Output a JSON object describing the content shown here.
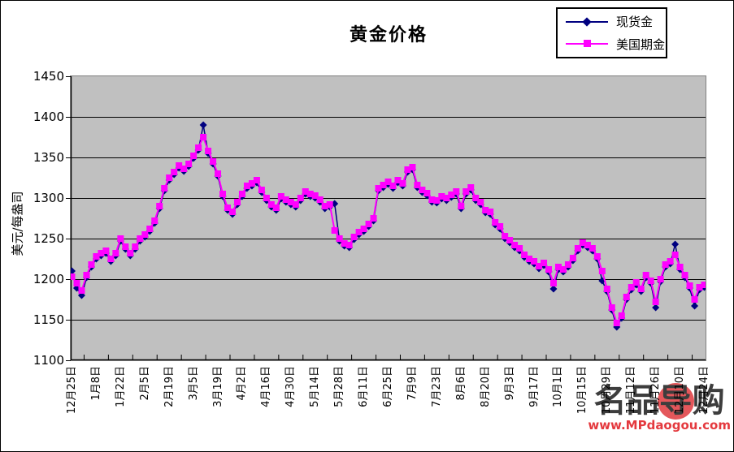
{
  "watermark": {
    "logo_chars": [
      "名",
      "品",
      "导",
      "购"
    ],
    "circled_char_index": 2,
    "url": "www.MPdaogou.com",
    "logo_color": "#3d3d3d",
    "accent_color": "#E4575B"
  },
  "chart_data": {
    "type": "line",
    "title": "黄金价格",
    "ylabel": "美元/每盎司",
    "ylim": [
      1100,
      1450
    ],
    "ytick_step": 50,
    "y_tick_labels": [
      "1100",
      "1150",
      "1200",
      "1250",
      "1300",
      "1350",
      "1400",
      "1450"
    ],
    "x_tick_labels": [
      "12月25日",
      "1月8日",
      "1月22日",
      "2月5日",
      "2月19日",
      "3月5日",
      "3月19日",
      "4月2日",
      "4月16日",
      "4月30日",
      "5月14日",
      "5月28日",
      "6月11日",
      "6月25日",
      "7月9日",
      "7月23日",
      "8月6日",
      "8月20日",
      "9月3日",
      "9月17日",
      "10月1日",
      "10月15日",
      "10月29日",
      "11月12日",
      "11月26日",
      "12月10日",
      "12月24日"
    ],
    "grid": "horizontal",
    "plot_bg": "#C0C0C0",
    "plot_border": "#808080",
    "grid_color": "#000000",
    "legend_position": "top-right",
    "series": [
      {
        "name": "现货金",
        "color": "#000080",
        "marker": "diamond",
        "values": [
          1210,
          1189,
          1180,
          1202,
          1215,
          1225,
          1229,
          1232,
          1222,
          1229,
          1247,
          1237,
          1229,
          1237,
          1247,
          1252,
          1259,
          1269,
          1287,
          1309,
          1322,
          1329,
          1337,
          1333,
          1339,
          1349,
          1359,
          1390,
          1355,
          1342,
          1327,
          1302,
          1285,
          1280,
          1292,
          1302,
          1312,
          1315,
          1319,
          1307,
          1297,
          1289,
          1285,
          1299,
          1295,
          1292,
          1289,
          1297,
          1305,
          1302,
          1300,
          1295,
          1287,
          1289,
          1293,
          1247,
          1241,
          1239,
          1249,
          1255,
          1259,
          1265,
          1272,
          1309,
          1313,
          1317,
          1312,
          1319,
          1315,
          1332,
          1335,
          1313,
          1307,
          1303,
          1295,
          1294,
          1299,
          1297,
          1301,
          1305,
          1287,
          1305,
          1310,
          1297,
          1292,
          1282,
          1280,
          1267,
          1262,
          1250,
          1245,
          1239,
          1235,
          1227,
          1222,
          1219,
          1213,
          1217,
          1209,
          1188,
          1212,
          1209,
          1215,
          1223,
          1235,
          1242,
          1239,
          1235,
          1225,
          1198,
          1185,
          1162,
          1141,
          1152,
          1175,
          1187,
          1193,
          1185,
          1202,
          1195,
          1165,
          1197,
          1215,
          1219,
          1243,
          1212,
          1202,
          1189,
          1167,
          1187,
          1190
        ]
      },
      {
        "name": "美国期金",
        "color": "#FF00FF",
        "marker": "square",
        "values": [
          1203,
          1195,
          1186,
          1205,
          1218,
          1228,
          1232,
          1235,
          1225,
          1232,
          1250,
          1240,
          1232,
          1240,
          1250,
          1255,
          1262,
          1272,
          1290,
          1312,
          1325,
          1332,
          1340,
          1336,
          1342,
          1352,
          1362,
          1375,
          1358,
          1345,
          1330,
          1305,
          1288,
          1283,
          1295,
          1305,
          1315,
          1318,
          1322,
          1310,
          1300,
          1292,
          1288,
          1302,
          1298,
          1295,
          1292,
          1300,
          1308,
          1305,
          1303,
          1298,
          1290,
          1292,
          1260,
          1250,
          1244,
          1242,
          1252,
          1258,
          1262,
          1268,
          1275,
          1312,
          1316,
          1320,
          1315,
          1322,
          1318,
          1335,
          1338,
          1316,
          1310,
          1306,
          1298,
          1297,
          1302,
          1300,
          1304,
          1308,
          1290,
          1308,
          1313,
          1300,
          1295,
          1285,
          1283,
          1270,
          1265,
          1253,
          1248,
          1242,
          1238,
          1230,
          1225,
          1222,
          1216,
          1220,
          1212,
          1195,
          1215,
          1212,
          1218,
          1226,
          1238,
          1245,
          1242,
          1238,
          1228,
          1210,
          1188,
          1165,
          1146,
          1155,
          1178,
          1190,
          1196,
          1188,
          1205,
          1198,
          1172,
          1200,
          1218,
          1222,
          1230,
          1215,
          1205,
          1192,
          1175,
          1190,
          1193
        ]
      }
    ]
  }
}
